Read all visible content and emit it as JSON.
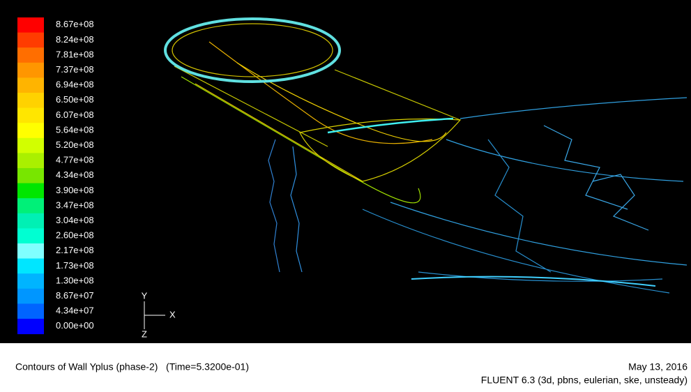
{
  "colorbar": [
    {
      "label": "8.67e+08",
      "color": "#ff0000"
    },
    {
      "label": "8.24e+08",
      "color": "#ff3c00"
    },
    {
      "label": "7.81e+08",
      "color": "#ff6e00"
    },
    {
      "label": "7.37e+08",
      "color": "#ff9600"
    },
    {
      "label": "6.94e+08",
      "color": "#ffb400"
    },
    {
      "label": "6.50e+08",
      "color": "#ffd200"
    },
    {
      "label": "6.07e+08",
      "color": "#ffe600"
    },
    {
      "label": "5.64e+08",
      "color": "#ffff00"
    },
    {
      "label": "5.20e+08",
      "color": "#d2ff00"
    },
    {
      "label": "4.77e+08",
      "color": "#aaf000"
    },
    {
      "label": "4.34e+08",
      "color": "#78e600"
    },
    {
      "label": "3.90e+08",
      "color": "#00e600"
    },
    {
      "label": "3.47e+08",
      "color": "#00f078"
    },
    {
      "label": "3.04e+08",
      "color": "#00f0b4"
    },
    {
      "label": "2.60e+08",
      "color": "#00ffd2"
    },
    {
      "label": "2.17e+08",
      "color": "#80ffff"
    },
    {
      "label": "1.73e+08",
      "color": "#00e6ff"
    },
    {
      "label": "1.30e+08",
      "color": "#00b4ff"
    },
    {
      "label": "8.67e+07",
      "color": "#0096ff"
    },
    {
      "label": "4.34e+07",
      "color": "#0064ff"
    },
    {
      "label": "0.00e+00",
      "color": "#0000ff"
    }
  ],
  "axes": {
    "y": "Y",
    "x": "X",
    "z": "Z"
  },
  "footer": {
    "title": "Contours of Wall Yplus (phase-2)   (Time=5.3200e-01)",
    "date": "May 13, 2016",
    "software": "FLUENT 6.3 (3d, pbns, eulerian, ske, unsteady)"
  }
}
